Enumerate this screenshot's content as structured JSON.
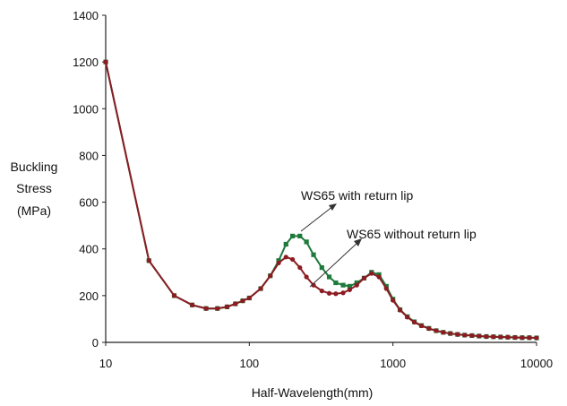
{
  "chart_data": {
    "type": "line",
    "xscale": "log",
    "xlim": [
      10,
      10000
    ],
    "ylim": [
      0,
      1400
    ],
    "xticks": [
      "10",
      "100",
      "1000",
      "10000"
    ],
    "xtick_values": [
      10,
      100,
      1000,
      10000
    ],
    "yticks": [
      "0",
      "200",
      "400",
      "600",
      "800",
      "1000",
      "1200",
      "1400"
    ],
    "ytick_values": [
      0,
      200,
      400,
      600,
      800,
      1000,
      1200,
      1400
    ],
    "xlabel": "Half-Wavelength(mm)",
    "ylabel_lines": [
      "Buckling",
      "Stress",
      "(MPa)"
    ],
    "grid": false,
    "annotations": [
      {
        "text": "WS65 with return lip",
        "series": "WS65 with return lip"
      },
      {
        "text": "WS65 without  return lip",
        "series": "WS65 without return lip"
      }
    ],
    "series": [
      {
        "name": "WS65 with return lip",
        "color": "#1e7a3c",
        "marker": "square",
        "x": [
          10,
          20,
          30,
          40,
          50,
          60,
          70,
          80,
          90,
          100,
          120,
          140,
          160,
          180,
          200,
          225,
          250,
          280,
          320,
          360,
          400,
          450,
          500,
          560,
          630,
          710,
          800,
          900,
          1000,
          1120,
          1260,
          1410,
          1580,
          1780,
          2000,
          2240,
          2510,
          2820,
          3160,
          3550,
          3980,
          4470,
          5010,
          5620,
          6310,
          7080,
          7940,
          8910,
          10000
        ],
        "y": [
          1200,
          350,
          200,
          160,
          145,
          145,
          152,
          165,
          178,
          190,
          230,
          285,
          350,
          420,
          455,
          455,
          430,
          375,
          320,
          280,
          255,
          245,
          240,
          255,
          275,
          300,
          290,
          240,
          185,
          140,
          110,
          88,
          72,
          60,
          50,
          43,
          38,
          34,
          31,
          29,
          27,
          25,
          24,
          23,
          22,
          21,
          20,
          20,
          19
        ]
      },
      {
        "name": "WS65 without return lip",
        "color": "#8b1c22",
        "marker": "circle",
        "x": [
          10,
          20,
          30,
          40,
          50,
          60,
          70,
          80,
          90,
          100,
          120,
          140,
          160,
          180,
          200,
          225,
          250,
          280,
          320,
          360,
          400,
          450,
          500,
          560,
          630,
          710,
          800,
          900,
          1000,
          1120,
          1260,
          1410,
          1580,
          1780,
          2000,
          2240,
          2510,
          2820,
          3160,
          3550,
          3980,
          4470,
          5010,
          5620,
          6310,
          7080,
          7940,
          8910,
          10000
        ],
        "y": [
          1200,
          350,
          200,
          160,
          145,
          145,
          152,
          165,
          178,
          190,
          230,
          285,
          340,
          365,
          355,
          320,
          280,
          245,
          220,
          210,
          208,
          212,
          225,
          245,
          275,
          295,
          280,
          230,
          180,
          138,
          108,
          86,
          71,
          59,
          50,
          43,
          38,
          34,
          31,
          29,
          27,
          25,
          24,
          23,
          22,
          21,
          20,
          20,
          19
        ]
      }
    ]
  }
}
